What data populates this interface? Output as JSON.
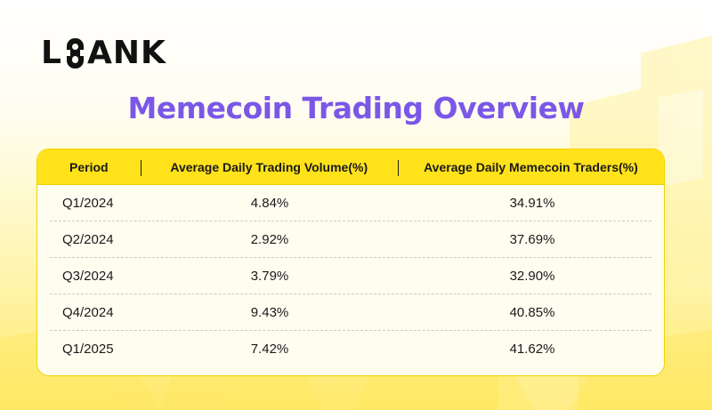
{
  "brand": {
    "logo_left": "L",
    "logo_right": "ANK",
    "color": "#111111"
  },
  "chart_data": {
    "type": "table",
    "title": "Memecoin Trading Overview",
    "columns": [
      "Period",
      "Average Daily Trading Volume(%)",
      "Average Daily Memecoin Traders(%)"
    ],
    "rows": [
      [
        "Q1/2024",
        "4.84%",
        "34.91%"
      ],
      [
        "Q2/2024",
        "2.92%",
        "37.69%"
      ],
      [
        "Q3/2024",
        "3.79%",
        "32.90%"
      ],
      [
        "Q4/2024",
        "9.43%",
        "40.85%"
      ],
      [
        "Q1/2025",
        "7.42%",
        "41.62%"
      ]
    ]
  },
  "colors": {
    "title": "#7b57e8",
    "header_bg": "#ffe21a",
    "card_bg": "#fffdf0",
    "accent_yellow": "#ffe96a"
  }
}
